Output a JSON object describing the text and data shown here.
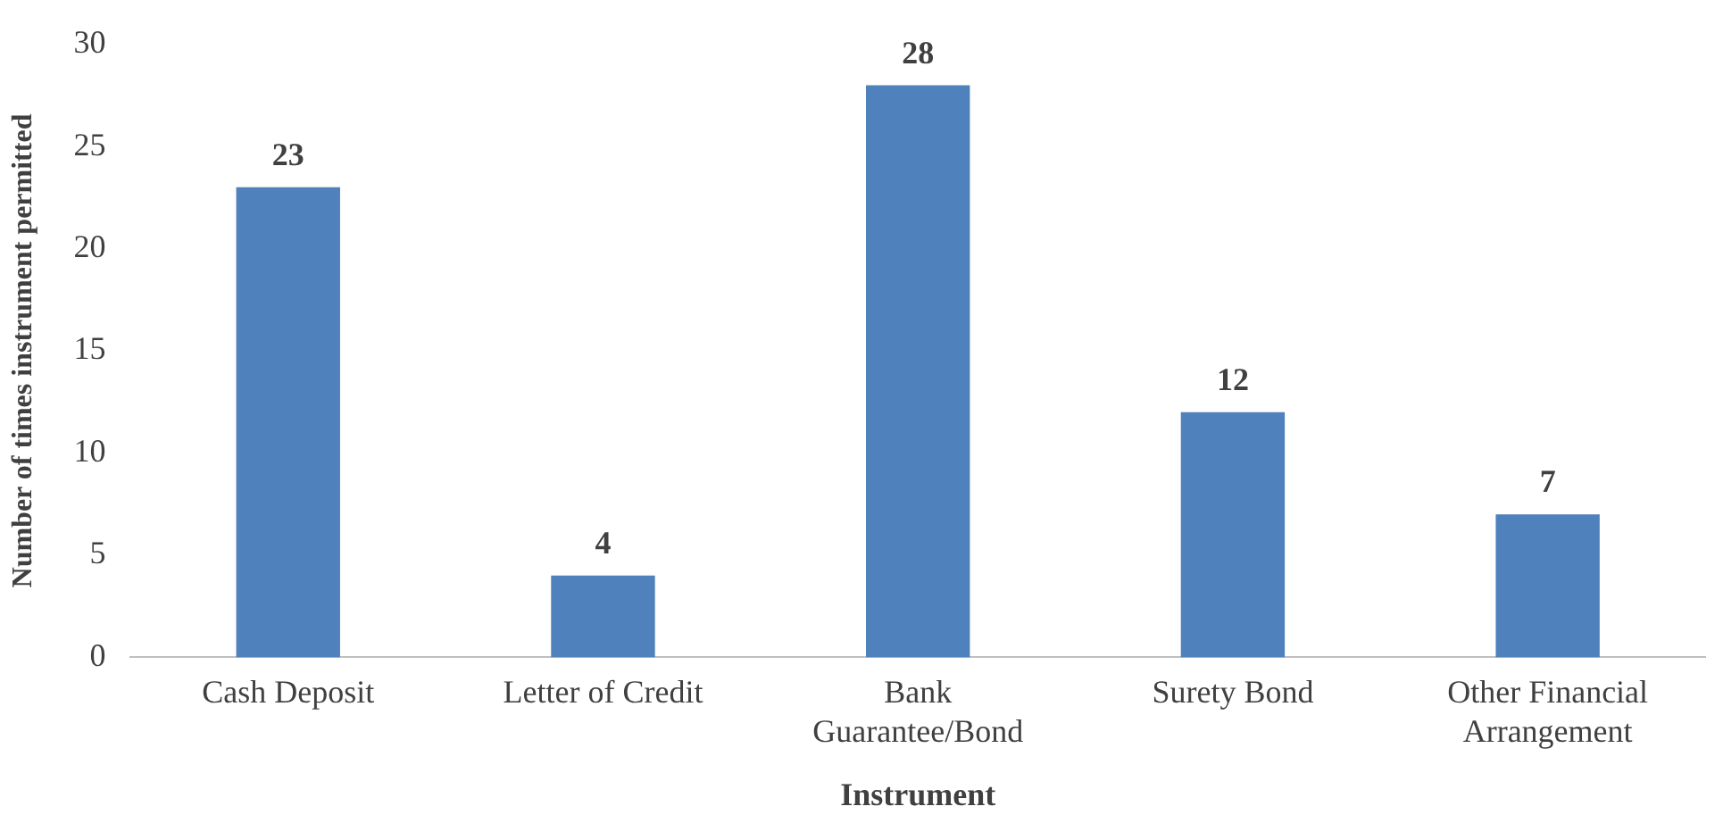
{
  "chart_data": {
    "type": "bar",
    "xlabel": "Instrument",
    "ylabel": "Number of times instrument permitted",
    "categories": [
      "Cash Deposit",
      "Letter of Credit",
      "Bank Guarantee/Bond",
      "Surety Bond",
      "Other Financial Arrangement"
    ],
    "values": [
      23,
      4,
      28,
      12,
      7
    ],
    "color": "#4f81bd",
    "ylim": [
      0,
      30
    ],
    "yticks": [
      0,
      5,
      10,
      15,
      20,
      25,
      30
    ],
    "grid": false,
    "legend": false,
    "data_labels": true
  }
}
